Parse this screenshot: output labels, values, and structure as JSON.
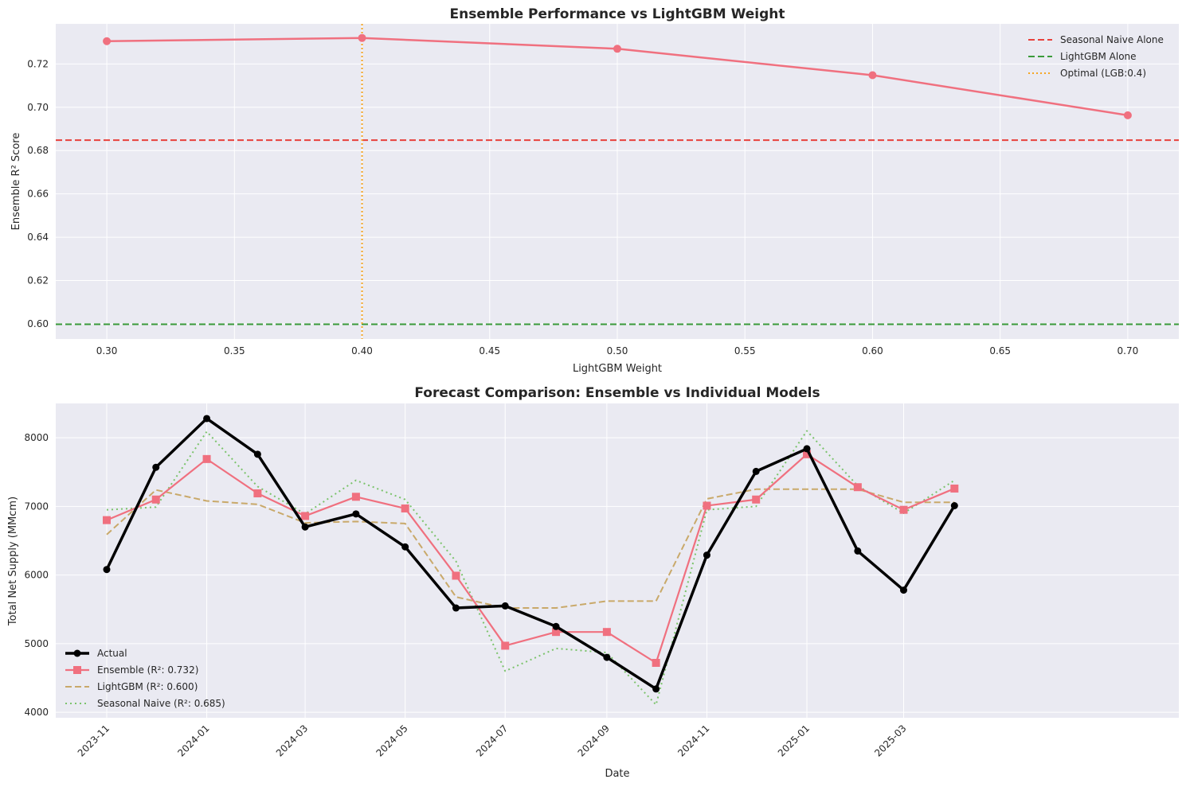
{
  "chart_data": [
    {
      "type": "line",
      "title": "Ensemble Performance vs LightGBM Weight",
      "xlabel": "LightGBM Weight",
      "ylabel": "Ensemble R² Score",
      "xlim": [
        0.28,
        0.72
      ],
      "ylim": [
        0.593,
        0.7385
      ],
      "xticks": [
        0.3,
        0.35,
        0.4,
        0.45,
        0.5,
        0.55,
        0.6,
        0.65,
        0.7
      ],
      "xtick_labels": [
        "0.30",
        "0.35",
        "0.40",
        "0.45",
        "0.50",
        "0.55",
        "0.60",
        "0.65",
        "0.70"
      ],
      "yticks": [
        0.6,
        0.62,
        0.64,
        0.66,
        0.68,
        0.7,
        0.72
      ],
      "ytick_labels": [
        "0.60",
        "0.62",
        "0.64",
        "0.66",
        "0.68",
        "0.70",
        "0.72"
      ],
      "grid": true,
      "series": [
        {
          "x": [
            0.3,
            0.4,
            0.5,
            0.6,
            0.7
          ],
          "y": [
            0.7305,
            0.732,
            0.727,
            0.7148,
            0.6963
          ],
          "color": "#f0707f"
        }
      ],
      "reference_lines": [
        {
          "orientation": "horizontal",
          "value": 0.6848,
          "label": "Seasonal Naive Alone",
          "color": "#e8413c",
          "style": "dashed"
        },
        {
          "orientation": "horizontal",
          "value": 0.5998,
          "label": "LightGBM Alone",
          "color": "#3a9a3a",
          "style": "dashed"
        },
        {
          "orientation": "vertical",
          "value": 0.4,
          "label": "Optimal (LGB:0.4)",
          "color": "#f5a623",
          "style": "dotted"
        }
      ],
      "legend_position": "top-right"
    },
    {
      "type": "line",
      "title": "Forecast Comparison: Ensemble vs Individual Models",
      "xlabel": "Date",
      "ylabel": "Total Net Supply (MMcm)",
      "ylim": [
        3920,
        8500
      ],
      "yticks": [
        4000,
        5000,
        6000,
        7000,
        8000
      ],
      "ytick_labels": [
        "4000",
        "5000",
        "6000",
        "7000",
        "8000"
      ],
      "xticks": [
        "2023-11",
        "2024-01",
        "2024-03",
        "2024-05",
        "2024-07",
        "2024-09",
        "2024-11",
        "2025-01",
        "2025-03"
      ],
      "x": [
        "2023-11",
        "2023-12",
        "2024-01",
        "2024-02",
        "2024-03",
        "2024-04",
        "2024-05",
        "2024-06",
        "2024-07",
        "2024-08",
        "2024-09",
        "2024-10",
        "2024-11",
        "2024-12",
        "2025-01",
        "2025-02",
        "2025-03",
        "2025-04"
      ],
      "grid": true,
      "series": [
        {
          "name": "Actual",
          "color": "#000000",
          "values": [
            6080,
            7570,
            8280,
            7760,
            6700,
            6890,
            6410,
            5520,
            5550,
            5250,
            4800,
            4340,
            6290,
            7510,
            7840,
            6350,
            5780,
            7010
          ]
        },
        {
          "name": "Ensemble (R²: 0.732)",
          "color": "#f0707f",
          "values": [
            6800,
            7100,
            7690,
            7190,
            6860,
            7140,
            6970,
            5990,
            4970,
            5170,
            5170,
            4720,
            7010,
            7100,
            7760,
            7280,
            6950,
            7260
          ]
        },
        {
          "name": "LightGBM (R²: 0.600)",
          "color": "#c9a96a",
          "values": [
            6590,
            7240,
            7080,
            7030,
            6760,
            6780,
            6750,
            5680,
            5520,
            5520,
            5620,
            5620,
            7110,
            7250,
            7250,
            7250,
            7060,
            7060
          ]
        },
        {
          "name": "Seasonal Naive (R²: 0.685)",
          "color": "#7bc36b",
          "values": [
            6950,
            6990,
            8090,
            7290,
            6890,
            7380,
            7100,
            6200,
            4600,
            4930,
            4870,
            4110,
            6950,
            7000,
            8100,
            7300,
            6900,
            7380
          ]
        }
      ],
      "legend_position": "lower-left"
    }
  ]
}
